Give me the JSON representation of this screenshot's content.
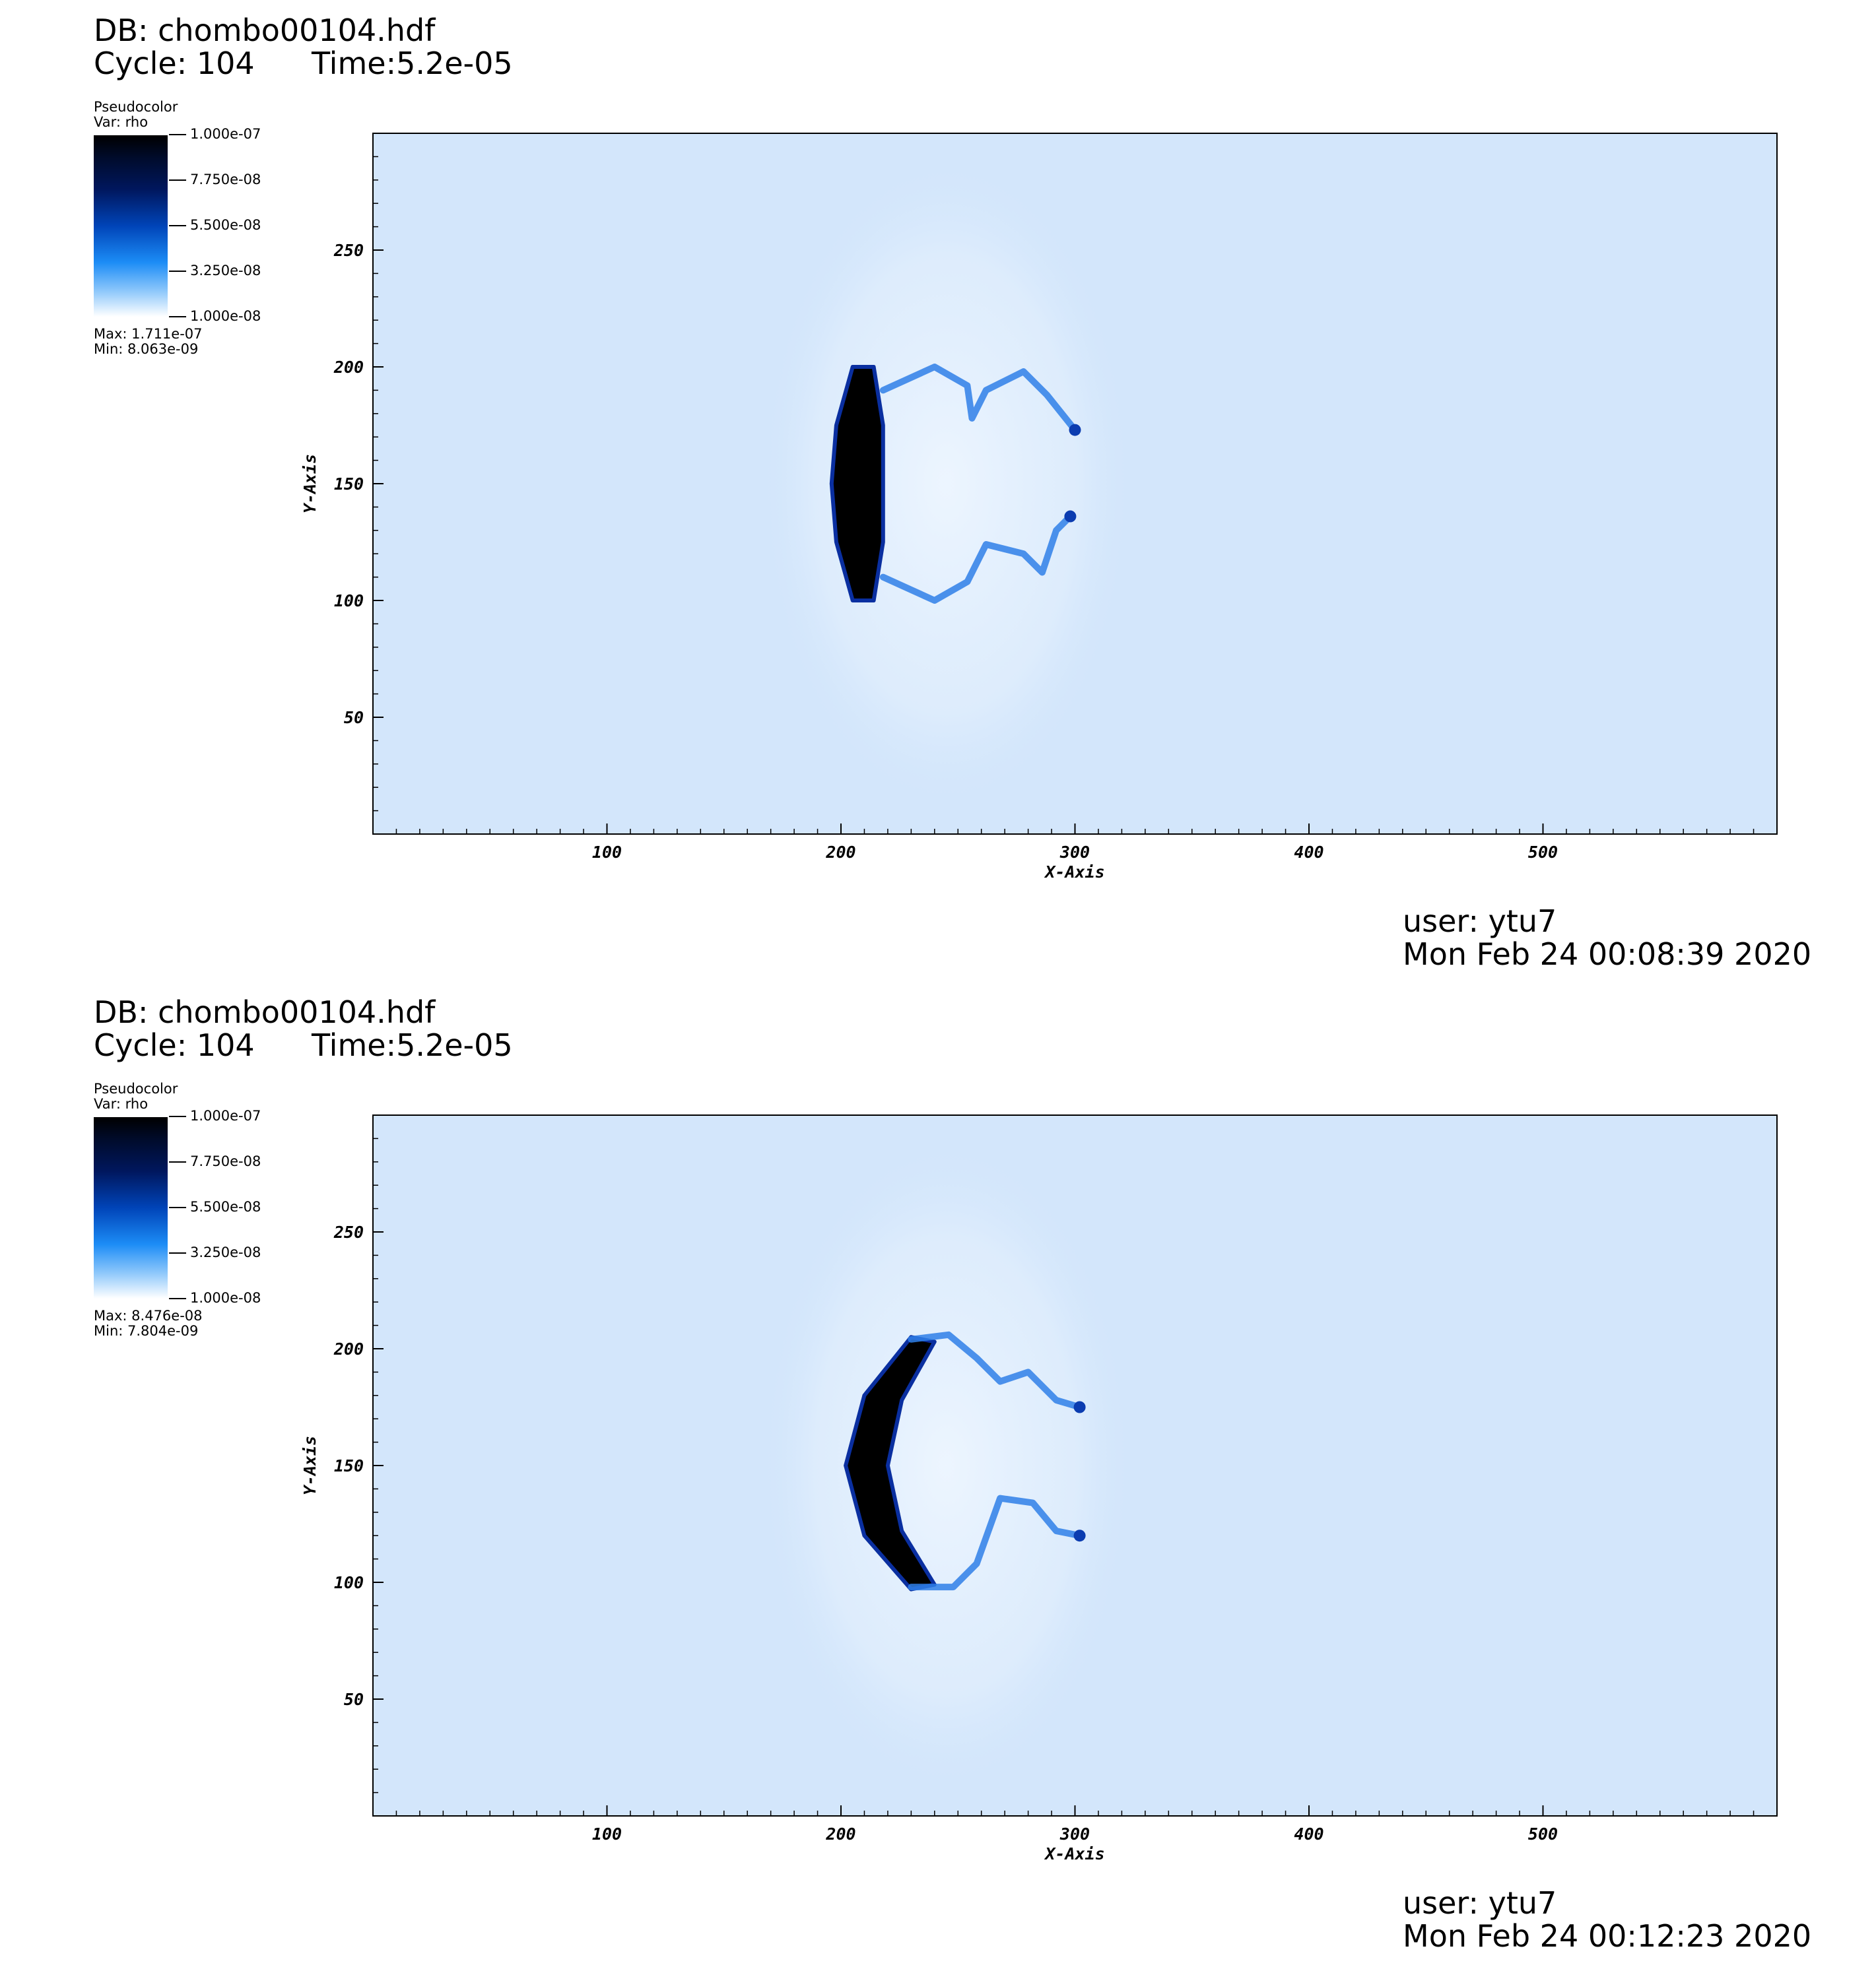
{
  "panels": [
    {
      "db": "DB: chombo00104.hdf",
      "cycle": "Cycle: 104",
      "time": "Time:5.2e-05",
      "legend": {
        "title": "Pseudocolor",
        "var": "Var: rho",
        "ticks": [
          "1.000e-07",
          "7.750e-08",
          "5.500e-08",
          "3.250e-08",
          "1.000e-08"
        ],
        "max": "Max:  1.711e-07",
        "min": "Min:  8.063e-09"
      },
      "user": "user: ytu7",
      "date": "Mon Feb 24 00:08:39 2020"
    },
    {
      "db": "DB: chombo00104.hdf",
      "cycle": "Cycle: 104",
      "time": "Time:5.2e-05",
      "legend": {
        "title": "Pseudocolor",
        "var": "Var: rho",
        "ticks": [
          "1.000e-07",
          "7.750e-08",
          "5.500e-08",
          "3.250e-08",
          "1.000e-08"
        ],
        "max": "Max:  8.476e-08",
        "min": "Min:  7.804e-09"
      },
      "user": "user: ytu7",
      "date": "Mon Feb 24 00:12:23 2020"
    }
  ],
  "chart_data": [
    {
      "type": "heatmap",
      "variable": "rho",
      "colormap": [
        "#ffffff",
        "#1c8cf6",
        "#0044b8",
        "#00175e",
        "#000000"
      ],
      "background_color": "#d3e6fb",
      "xlabel": "X-Axis",
      "ylabel": "Y-Axis",
      "xlim": [
        0,
        600
      ],
      "ylim": [
        0,
        300
      ],
      "xticks": [
        100,
        200,
        300,
        400,
        500
      ],
      "yticks": [
        50,
        100,
        150,
        200,
        250
      ],
      "colorbar_range": [
        1e-08,
        1e-07
      ],
      "data_max": 1.711e-07,
      "data_min": 8.063e-09,
      "feature": "dense crescent front near x=200-215 spanning y=100-200 with Kelvin-Helmholtz rollup tails extending to x=300",
      "tails": [
        [
          [
            218,
            190
          ],
          [
            240,
            200
          ],
          [
            254,
            192
          ],
          [
            256,
            178
          ],
          [
            262,
            190
          ],
          [
            278,
            198
          ],
          [
            288,
            188
          ],
          [
            300,
            173
          ]
        ],
        [
          [
            218,
            110
          ],
          [
            240,
            100
          ],
          [
            254,
            108
          ],
          [
            262,
            124
          ],
          [
            278,
            120
          ],
          [
            286,
            112
          ],
          [
            292,
            130
          ],
          [
            298,
            136
          ]
        ]
      ]
    },
    {
      "type": "heatmap",
      "variable": "rho",
      "colormap": [
        "#ffffff",
        "#1c8cf6",
        "#0044b8",
        "#00175e",
        "#000000"
      ],
      "background_color": "#d3e6fb",
      "xlabel": "X-Axis",
      "ylabel": "Y-Axis",
      "xlim": [
        0,
        600
      ],
      "ylim": [
        0,
        300
      ],
      "xticks": [
        100,
        200,
        300,
        400,
        500
      ],
      "yticks": [
        50,
        100,
        150,
        200,
        250
      ],
      "colorbar_range": [
        1e-08,
        1e-07
      ],
      "data_max": 8.476e-08,
      "data_min": 7.804e-09,
      "feature": "smooth dense crescent front near x=202-230 spanning y=100-205 with two rollup tails extending to x=302",
      "tails": [
        [
          [
            230,
            204
          ],
          [
            246,
            206
          ],
          [
            258,
            196
          ],
          [
            268,
            186
          ],
          [
            280,
            190
          ],
          [
            292,
            178
          ],
          [
            302,
            175
          ]
        ],
        [
          [
            230,
            98
          ],
          [
            248,
            98
          ],
          [
            258,
            108
          ],
          [
            268,
            136
          ],
          [
            282,
            134
          ],
          [
            292,
            122
          ],
          [
            302,
            120
          ]
        ]
      ]
    }
  ]
}
